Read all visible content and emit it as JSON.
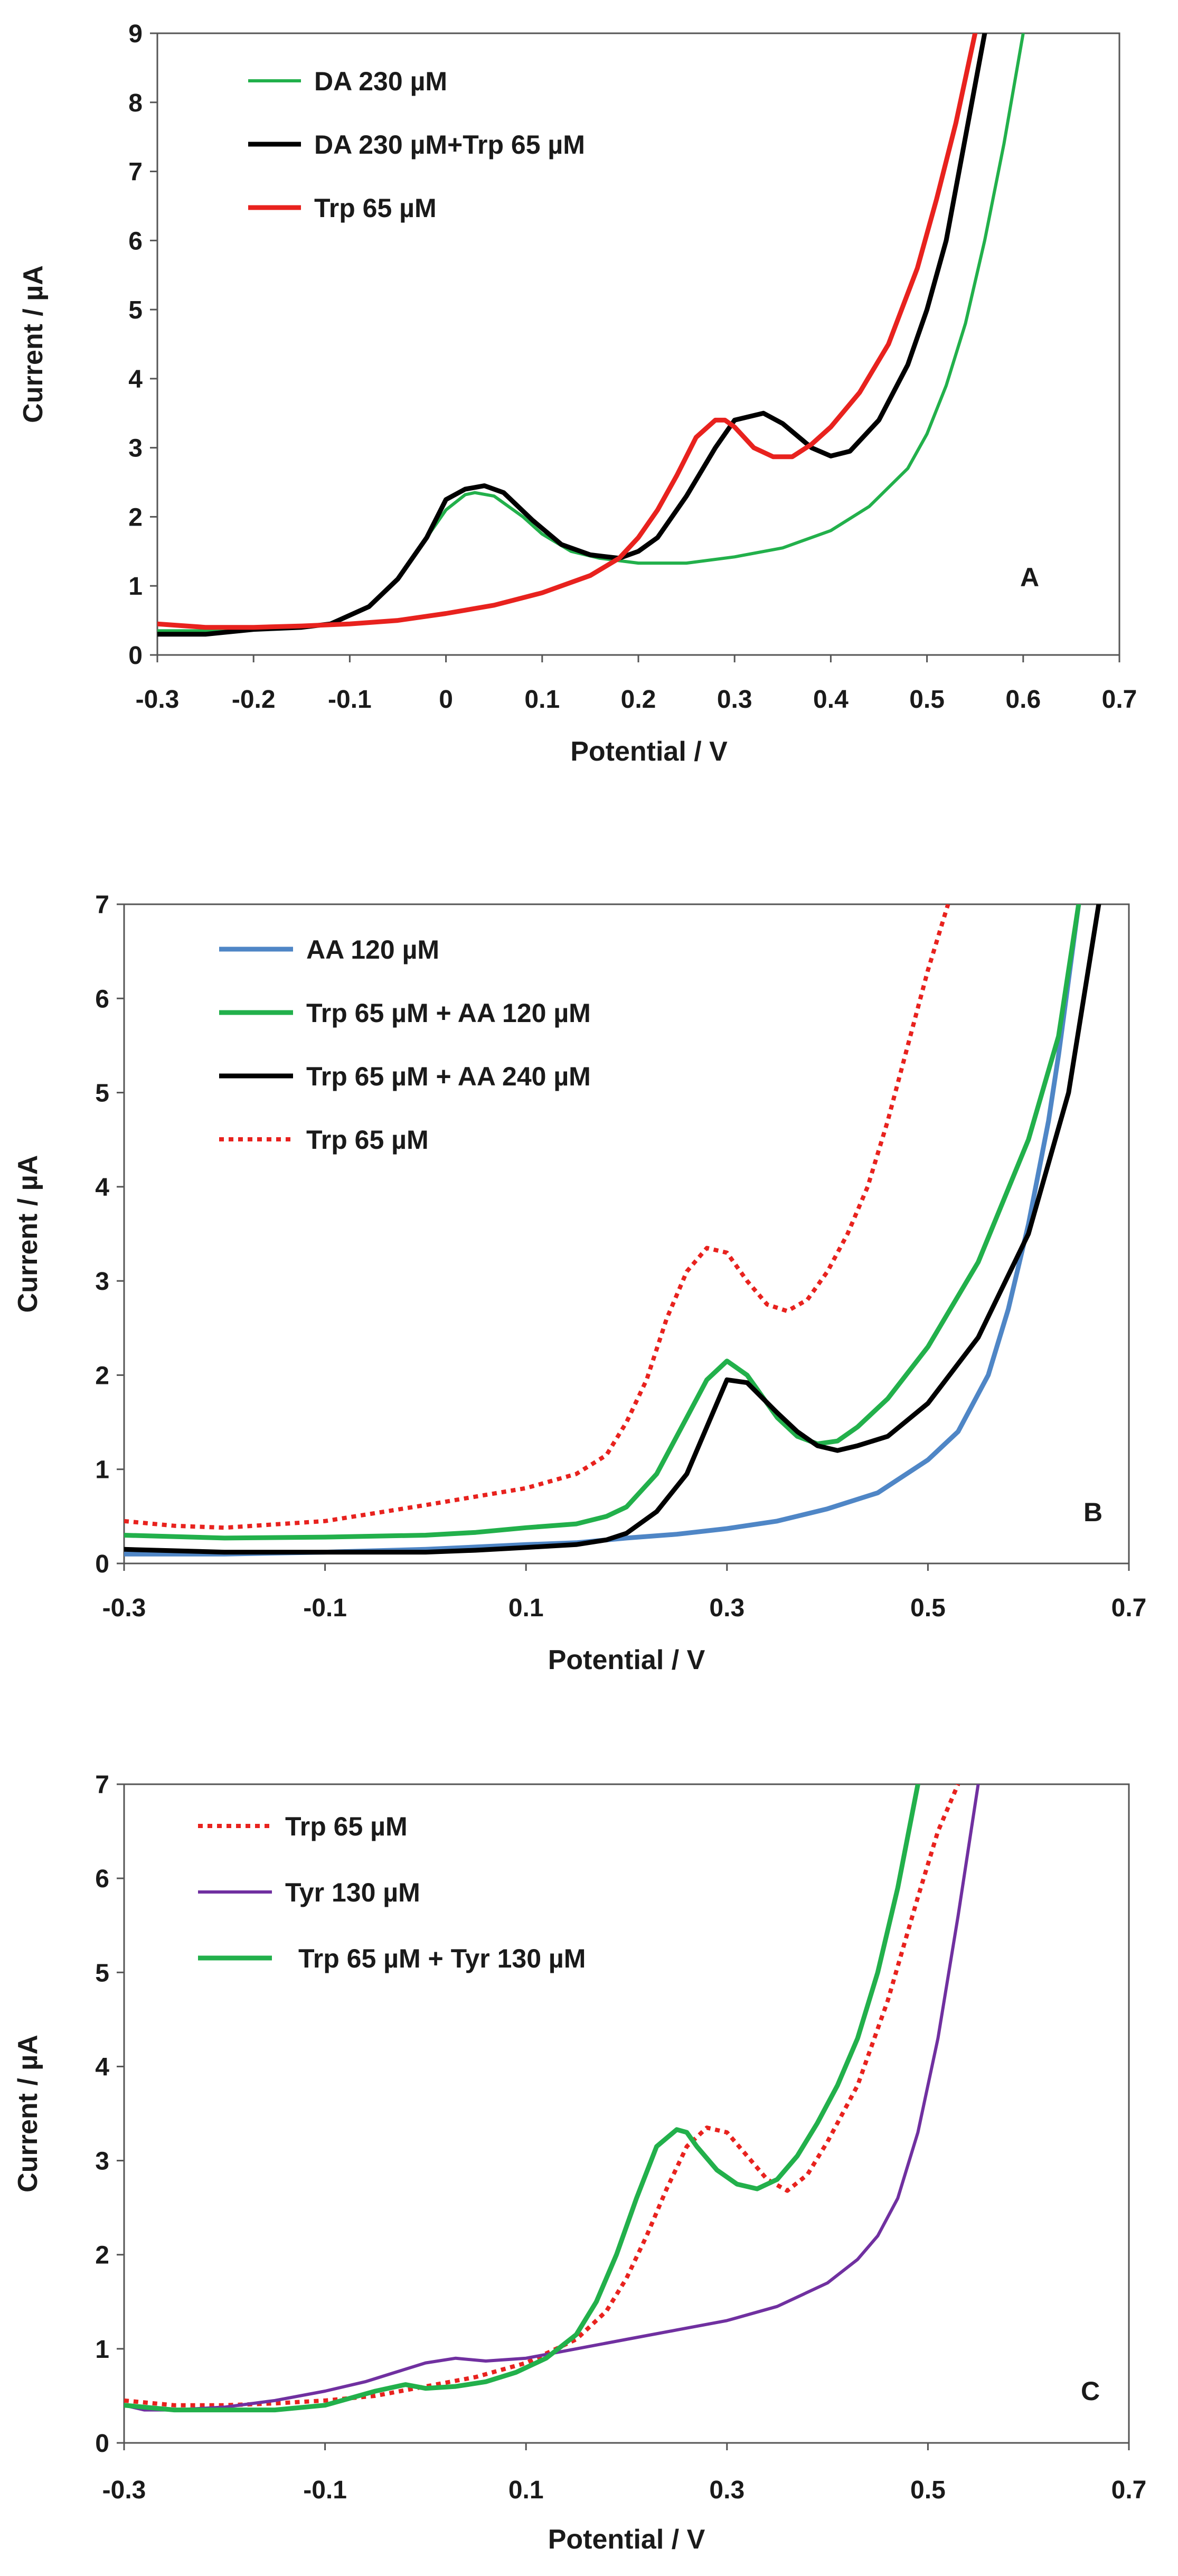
{
  "chart_data": [
    {
      "type": "line",
      "panel_label": "A",
      "xlabel": "Potential / V",
      "ylabel": "Current / µA",
      "xlim": [
        -0.3,
        0.7
      ],
      "ylim": [
        0,
        9
      ],
      "xticks": [
        -0.3,
        -0.2,
        -0.1,
        0,
        0.1,
        0.2,
        0.3,
        0.4,
        0.5,
        0.6,
        0.7
      ],
      "xtick_labels": [
        "-0.3",
        "-0.2",
        "-0.1",
        "0",
        "0.1",
        "0.2",
        "0.3",
        "0.4",
        "0.5",
        "0.6",
        "0.7"
      ],
      "yticks": [
        0,
        1,
        2,
        3,
        4,
        5,
        6,
        7,
        8,
        9
      ],
      "ytick_labels": [
        "0",
        "1",
        "2",
        "3",
        "4",
        "5",
        "6",
        "7",
        "8",
        "9"
      ],
      "series": [
        {
          "name": "DA 230 µM",
          "color": "#22b04b",
          "dash": "solid",
          "x": [
            -0.3,
            -0.25,
            -0.2,
            -0.15,
            -0.12,
            -0.08,
            -0.05,
            -0.02,
            0.0,
            0.02,
            0.03,
            0.05,
            0.08,
            0.1,
            0.13,
            0.16,
            0.2,
            0.25,
            0.3,
            0.35,
            0.4,
            0.44,
            0.48,
            0.5,
            0.52,
            0.54,
            0.56,
            0.58,
            0.6
          ],
          "y": [
            0.35,
            0.35,
            0.37,
            0.4,
            0.45,
            0.7,
            1.1,
            1.7,
            2.1,
            2.32,
            2.35,
            2.3,
            2.0,
            1.75,
            1.5,
            1.4,
            1.33,
            1.33,
            1.42,
            1.55,
            1.8,
            2.15,
            2.7,
            3.2,
            3.9,
            4.8,
            6.0,
            7.4,
            9.0
          ]
        },
        {
          "name": "DA 230 µM+Trp 65 µM",
          "color": "#000000",
          "dash": "solid",
          "x": [
            -0.3,
            -0.25,
            -0.2,
            -0.15,
            -0.12,
            -0.08,
            -0.05,
            -0.02,
            0.0,
            0.02,
            0.04,
            0.06,
            0.09,
            0.12,
            0.15,
            0.18,
            0.2,
            0.22,
            0.25,
            0.28,
            0.3,
            0.33,
            0.35,
            0.38,
            0.4,
            0.42,
            0.45,
            0.48,
            0.5,
            0.52,
            0.54,
            0.56
          ],
          "y": [
            0.3,
            0.3,
            0.37,
            0.4,
            0.45,
            0.7,
            1.1,
            1.7,
            2.25,
            2.4,
            2.45,
            2.35,
            1.95,
            1.6,
            1.45,
            1.4,
            1.5,
            1.7,
            2.3,
            3.0,
            3.4,
            3.5,
            3.35,
            3.0,
            2.88,
            2.95,
            3.4,
            4.2,
            5.0,
            6.0,
            7.5,
            9.0
          ]
        },
        {
          "name": "Trp 65 µM",
          "color": "#e8221e",
          "dash": "solid",
          "x": [
            -0.3,
            -0.25,
            -0.2,
            -0.15,
            -0.1,
            -0.05,
            0.0,
            0.05,
            0.1,
            0.15,
            0.18,
            0.2,
            0.22,
            0.24,
            0.26,
            0.28,
            0.29,
            0.3,
            0.32,
            0.34,
            0.36,
            0.38,
            0.4,
            0.43,
            0.46,
            0.49,
            0.51,
            0.53,
            0.55
          ],
          "y": [
            0.45,
            0.4,
            0.4,
            0.42,
            0.45,
            0.5,
            0.6,
            0.72,
            0.9,
            1.15,
            1.4,
            1.7,
            2.1,
            2.6,
            3.15,
            3.4,
            3.4,
            3.3,
            3.0,
            2.87,
            2.87,
            3.05,
            3.3,
            3.8,
            4.5,
            5.6,
            6.6,
            7.7,
            9.0
          ]
        }
      ]
    },
    {
      "type": "line",
      "panel_label": "B",
      "xlabel": "Potential / V",
      "ylabel": "Current / µA",
      "xlim": [
        -0.3,
        0.7
      ],
      "ylim": [
        0,
        7
      ],
      "xticks": [
        -0.3,
        -0.1,
        0.1,
        0.3,
        0.5,
        0.7
      ],
      "xtick_labels": [
        "-0.3",
        "-0.1",
        "0.1",
        "0.3",
        "0.5",
        "0.7"
      ],
      "yticks": [
        0,
        1,
        2,
        3,
        4,
        5,
        6,
        7
      ],
      "ytick_labels": [
        "0",
        "1",
        "2",
        "3",
        "4",
        "5",
        "6",
        "7"
      ],
      "series": [
        {
          "name": "AA 120 µM",
          "color": "#4f86c6",
          "dash": "solid",
          "x": [
            -0.3,
            -0.2,
            -0.1,
            0.0,
            0.1,
            0.15,
            0.2,
            0.25,
            0.3,
            0.35,
            0.4,
            0.45,
            0.5,
            0.53,
            0.56,
            0.58,
            0.6,
            0.62,
            0.63,
            0.64,
            0.65
          ],
          "y": [
            0.1,
            0.1,
            0.12,
            0.15,
            0.2,
            0.22,
            0.27,
            0.31,
            0.37,
            0.45,
            0.58,
            0.75,
            1.1,
            1.4,
            2.0,
            2.7,
            3.6,
            4.7,
            5.4,
            6.2,
            7.0
          ]
        },
        {
          "name": "Trp 65 µM + AA 120 µM",
          "color": "#22b04b",
          "dash": "solid",
          "x": [
            -0.3,
            -0.2,
            -0.1,
            0.0,
            0.05,
            0.1,
            0.15,
            0.18,
            0.2,
            0.23,
            0.26,
            0.28,
            0.3,
            0.32,
            0.35,
            0.37,
            0.39,
            0.41,
            0.43,
            0.46,
            0.5,
            0.55,
            0.6,
            0.63,
            0.65
          ],
          "y": [
            0.3,
            0.27,
            0.28,
            0.3,
            0.33,
            0.38,
            0.42,
            0.5,
            0.6,
            0.95,
            1.55,
            1.95,
            2.15,
            2.0,
            1.55,
            1.35,
            1.27,
            1.3,
            1.45,
            1.75,
            2.3,
            3.2,
            4.5,
            5.6,
            7.0
          ]
        },
        {
          "name": "Trp 65 µM + AA 240 µM",
          "color": "#000000",
          "dash": "solid",
          "x": [
            -0.3,
            -0.2,
            -0.1,
            0.0,
            0.05,
            0.1,
            0.15,
            0.18,
            0.2,
            0.23,
            0.26,
            0.28,
            0.3,
            0.32,
            0.35,
            0.37,
            0.39,
            0.41,
            0.43,
            0.46,
            0.5,
            0.55,
            0.6,
            0.64,
            0.67
          ],
          "y": [
            0.15,
            0.12,
            0.12,
            0.12,
            0.14,
            0.17,
            0.2,
            0.25,
            0.32,
            0.55,
            0.95,
            1.45,
            1.95,
            1.92,
            1.6,
            1.4,
            1.25,
            1.2,
            1.25,
            1.35,
            1.7,
            2.4,
            3.5,
            5.0,
            7.0
          ]
        },
        {
          "name": "Trp 65 µM",
          "color": "#e8221e",
          "dash": "dotted",
          "x": [
            -0.3,
            -0.25,
            -0.2,
            -0.1,
            0.0,
            0.1,
            0.15,
            0.18,
            0.2,
            0.22,
            0.24,
            0.26,
            0.28,
            0.3,
            0.32,
            0.34,
            0.36,
            0.38,
            0.4,
            0.42,
            0.44,
            0.46,
            0.48,
            0.5,
            0.52
          ],
          "y": [
            0.45,
            0.4,
            0.38,
            0.45,
            0.62,
            0.8,
            0.95,
            1.15,
            1.5,
            1.95,
            2.6,
            3.1,
            3.35,
            3.3,
            3.0,
            2.75,
            2.68,
            2.8,
            3.1,
            3.5,
            4.0,
            4.7,
            5.5,
            6.3,
            7.0
          ]
        }
      ]
    },
    {
      "type": "line",
      "panel_label": "C",
      "xlabel": "Potential / V",
      "ylabel": "Current / µA",
      "xlim": [
        -0.3,
        0.7
      ],
      "ylim": [
        0,
        7
      ],
      "xticks": [
        -0.3,
        -0.1,
        0.1,
        0.3,
        0.5,
        0.7
      ],
      "xtick_labels": [
        "-0.3",
        "-0.1",
        "0.1",
        "0.3",
        "0.5",
        "0.7"
      ],
      "yticks": [
        0,
        1,
        2,
        3,
        4,
        5,
        6,
        7
      ],
      "ytick_labels": [
        "0",
        "1",
        "2",
        "3",
        "4",
        "5",
        "6",
        "7"
      ],
      "series": [
        {
          "name": "Trp 65 µM",
          "color": "#e8221e",
          "dash": "dotted",
          "x": [
            -0.3,
            -0.25,
            -0.2,
            -0.15,
            -0.1,
            -0.05,
            0.0,
            0.05,
            0.1,
            0.15,
            0.18,
            0.2,
            0.22,
            0.24,
            0.26,
            0.28,
            0.3,
            0.32,
            0.34,
            0.36,
            0.38,
            0.4,
            0.43,
            0.46,
            0.49,
            0.51,
            0.53
          ],
          "y": [
            0.45,
            0.4,
            0.4,
            0.42,
            0.45,
            0.5,
            0.6,
            0.7,
            0.85,
            1.1,
            1.4,
            1.75,
            2.2,
            2.7,
            3.15,
            3.35,
            3.3,
            3.05,
            2.8,
            2.68,
            2.85,
            3.2,
            3.8,
            4.7,
            5.8,
            6.5,
            7.0
          ]
        },
        {
          "name": "Tyr 130 µM",
          "color": "#7030a0",
          "dash": "solid",
          "x": [
            -0.3,
            -0.28,
            -0.25,
            -0.2,
            -0.15,
            -0.1,
            -0.06,
            -0.03,
            0.0,
            0.03,
            0.06,
            0.1,
            0.15,
            0.2,
            0.25,
            0.3,
            0.35,
            0.4,
            0.43,
            0.45,
            0.47,
            0.49,
            0.51,
            0.53,
            0.55
          ],
          "y": [
            0.4,
            0.35,
            0.35,
            0.38,
            0.45,
            0.55,
            0.65,
            0.75,
            0.85,
            0.9,
            0.87,
            0.9,
            1.0,
            1.1,
            1.2,
            1.3,
            1.45,
            1.7,
            1.95,
            2.2,
            2.6,
            3.3,
            4.3,
            5.6,
            7.0
          ]
        },
        {
          "name": "Trp 65 µM + Tyr 130 µM",
          "color": "#22b04b",
          "dash": "solid",
          "x": [
            -0.3,
            -0.25,
            -0.2,
            -0.15,
            -0.1,
            -0.05,
            -0.02,
            0.0,
            0.03,
            0.06,
            0.09,
            0.12,
            0.15,
            0.17,
            0.19,
            0.21,
            0.23,
            0.25,
            0.26,
            0.27,
            0.29,
            0.31,
            0.33,
            0.35,
            0.37,
            0.39,
            0.41,
            0.43,
            0.45,
            0.47,
            0.49
          ],
          "y": [
            0.4,
            0.35,
            0.35,
            0.35,
            0.4,
            0.55,
            0.62,
            0.58,
            0.6,
            0.65,
            0.75,
            0.9,
            1.15,
            1.5,
            2.0,
            2.6,
            3.15,
            3.33,
            3.3,
            3.15,
            2.9,
            2.75,
            2.7,
            2.8,
            3.05,
            3.4,
            3.8,
            4.3,
            5.0,
            5.9,
            7.0
          ]
        }
      ]
    }
  ]
}
